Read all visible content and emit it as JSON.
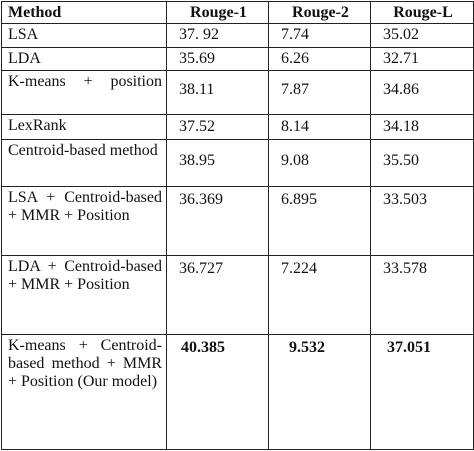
{
  "table": {
    "headers": [
      "Method",
      "Rouge-1",
      "Rouge-2",
      "Rouge-L"
    ],
    "rows": [
      {
        "method": "LSA",
        "rouge1": "37. 92",
        "rouge2": "7.74",
        "rougeL": "35.02"
      },
      {
        "method": "LDA",
        "rouge1": "35.69",
        "rouge2": "6.26",
        "rougeL": "32.71"
      },
      {
        "method": "K-means + position",
        "rouge1": "38.11",
        "rouge2": "7.87",
        "rougeL": "34.86"
      },
      {
        "method": "LexRank",
        "rouge1": "37.52",
        "rouge2": "8.14",
        "rougeL": "34.18"
      },
      {
        "method": "Centroid-based method",
        "rouge1": "38.95",
        "rouge2": "9.08",
        "rougeL": "35.50"
      },
      {
        "method": "LSA + Centroid-based + MMR + Position",
        "rouge1": "36.369",
        "rouge2": "6.895",
        "rougeL": "33.503"
      },
      {
        "method": "LDA + Centroid-based + MMR + Position",
        "rouge1": "36.727",
        "rouge2": "7.224",
        "rougeL": "33.578"
      },
      {
        "method": "K-means + Centroid-based method + MMR + Position (Our model)",
        "rouge1": "40.385",
        "rouge2": "9.532",
        "rougeL": "37.051"
      }
    ]
  }
}
